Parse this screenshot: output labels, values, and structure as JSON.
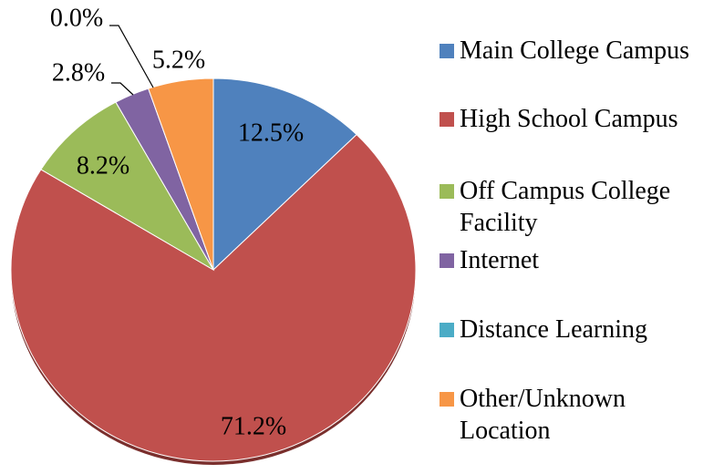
{
  "chart_data": {
    "type": "pie",
    "categories": [
      "Main College Campus",
      "High School Campus",
      "Off Campus College Facility",
      "Internet",
      "Distance Learning",
      "Other/Unknown Location"
    ],
    "values": [
      12.5,
      71.2,
      8.2,
      2.8,
      0.0,
      5.2
    ],
    "value_labels": [
      "12.5%",
      "71.2%",
      "8.2%",
      "2.8%",
      "0.0%",
      "5.2%"
    ],
    "colors": [
      "#4f81bd",
      "#c0504d",
      "#9bbb59",
      "#8064a2",
      "#4bacc6",
      "#f79646"
    ],
    "legend": "right"
  }
}
